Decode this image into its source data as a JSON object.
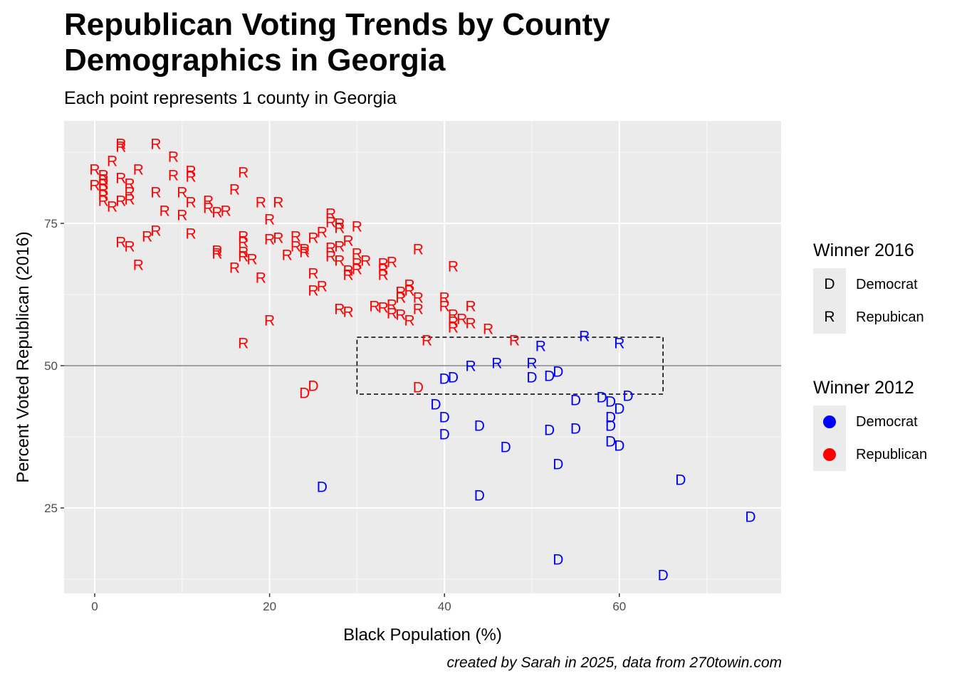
{
  "title_lines": [
    "Republican Voting Trends by County",
    "Demographics in Georgia"
  ],
  "subtitle": "Each point represents 1 county in Georgia",
  "caption": "created by Sarah in 2025, data from 270towin.com",
  "colors": {
    "democrat": "#0000ff",
    "republican": "#ff0000",
    "panel": "#ebebeb",
    "hline": "#808080"
  },
  "legend_2016": {
    "title": "Winner 2016",
    "items": [
      {
        "key": "D",
        "label": "Democrat"
      },
      {
        "key": "R",
        "label": "Repubican"
      }
    ]
  },
  "legend_2012": {
    "title": "Winner 2012",
    "items": [
      {
        "color": "#0000ff",
        "label": "Democrat"
      },
      {
        "color": "#ff0000",
        "label": "Republican"
      }
    ]
  },
  "chart_data": {
    "type": "scatter",
    "title": "Republican Voting Trends by County Demographics in Georgia",
    "subtitle": "Each point represents 1 county in Georgia",
    "xlabel": "Black Population (%)",
    "ylabel": "Percent Voted Republican (2016)",
    "xlim": [
      -3.5,
      78.5
    ],
    "ylim": [
      10,
      93
    ],
    "x_ticks": [
      0,
      20,
      40,
      60
    ],
    "y_ticks": [
      25,
      50,
      75
    ],
    "reference_line_y": 50,
    "highlight_box": {
      "x": [
        30,
        65
      ],
      "y": [
        45,
        55
      ]
    },
    "grid": true,
    "legend_position": "right",
    "points": [
      {
        "x": 0,
        "y": 84.4,
        "label": "R",
        "winner_2012": "R"
      },
      {
        "x": 0,
        "y": 81.6,
        "label": "R",
        "winner_2012": "R"
      },
      {
        "x": 1,
        "y": 83.4,
        "label": "R",
        "winner_2012": "R"
      },
      {
        "x": 1,
        "y": 82.6,
        "label": "R",
        "winner_2012": "R"
      },
      {
        "x": 1,
        "y": 81.9,
        "label": "R",
        "winner_2012": "R"
      },
      {
        "x": 1,
        "y": 80.9,
        "label": "R",
        "winner_2012": "R"
      },
      {
        "x": 1,
        "y": 79.9,
        "label": "R",
        "winner_2012": "R"
      },
      {
        "x": 1,
        "y": 78.9,
        "label": "R",
        "winner_2012": "R"
      },
      {
        "x": 2,
        "y": 85.9,
        "label": "R",
        "winner_2012": "R"
      },
      {
        "x": 2,
        "y": 77.9,
        "label": "R",
        "winner_2012": "R"
      },
      {
        "x": 3,
        "y": 88.9,
        "label": "R",
        "winner_2012": "R"
      },
      {
        "x": 3,
        "y": 88.4,
        "label": "R",
        "winner_2012": "R"
      },
      {
        "x": 3,
        "y": 82.9,
        "label": "R",
        "winner_2012": "R"
      },
      {
        "x": 3,
        "y": 78.9,
        "label": "R",
        "winner_2012": "R"
      },
      {
        "x": 3,
        "y": 71.6,
        "label": "R",
        "winner_2012": "R"
      },
      {
        "x": 4,
        "y": 81.9,
        "label": "R",
        "winner_2012": "R"
      },
      {
        "x": 4,
        "y": 80.4,
        "label": "R",
        "winner_2012": "R"
      },
      {
        "x": 4,
        "y": 79.1,
        "label": "R",
        "winner_2012": "R"
      },
      {
        "x": 4,
        "y": 70.9,
        "label": "R",
        "winner_2012": "R"
      },
      {
        "x": 5,
        "y": 84.4,
        "label": "R",
        "winner_2012": "R"
      },
      {
        "x": 5,
        "y": 67.6,
        "label": "R",
        "winner_2012": "R"
      },
      {
        "x": 6,
        "y": 72.6,
        "label": "R",
        "winner_2012": "R"
      },
      {
        "x": 7,
        "y": 88.9,
        "label": "R",
        "winner_2012": "R"
      },
      {
        "x": 7,
        "y": 80.4,
        "label": "R",
        "winner_2012": "R"
      },
      {
        "x": 7,
        "y": 73.6,
        "label": "R",
        "winner_2012": "R"
      },
      {
        "x": 8,
        "y": 77.1,
        "label": "R",
        "winner_2012": "R"
      },
      {
        "x": 9,
        "y": 86.6,
        "label": "R",
        "winner_2012": "R"
      },
      {
        "x": 9,
        "y": 83.4,
        "label": "R",
        "winner_2012": "R"
      },
      {
        "x": 10,
        "y": 80.4,
        "label": "R",
        "winner_2012": "R"
      },
      {
        "x": 10,
        "y": 76.4,
        "label": "R",
        "winner_2012": "R"
      },
      {
        "x": 11,
        "y": 84.1,
        "label": "R",
        "winner_2012": "R"
      },
      {
        "x": 11,
        "y": 83.1,
        "label": "R",
        "winner_2012": "R"
      },
      {
        "x": 11,
        "y": 78.6,
        "label": "R",
        "winner_2012": "R"
      },
      {
        "x": 11,
        "y": 73.1,
        "label": "R",
        "winner_2012": "R"
      },
      {
        "x": 13,
        "y": 78.9,
        "label": "R",
        "winner_2012": "R"
      },
      {
        "x": 13,
        "y": 77.6,
        "label": "R",
        "winner_2012": "R"
      },
      {
        "x": 14,
        "y": 76.9,
        "label": "R",
        "winner_2012": "R"
      },
      {
        "x": 14,
        "y": 70.1,
        "label": "R",
        "winner_2012": "R"
      },
      {
        "x": 14,
        "y": 69.6,
        "label": "R",
        "winner_2012": "R"
      },
      {
        "x": 15,
        "y": 77.1,
        "label": "R",
        "winner_2012": "R"
      },
      {
        "x": 16,
        "y": 80.9,
        "label": "R",
        "winner_2012": "R"
      },
      {
        "x": 16,
        "y": 67.1,
        "label": "R",
        "winner_2012": "R"
      },
      {
        "x": 17,
        "y": 83.9,
        "label": "R",
        "winner_2012": "R"
      },
      {
        "x": 17,
        "y": 72.6,
        "label": "R",
        "winner_2012": "R"
      },
      {
        "x": 17,
        "y": 71.6,
        "label": "R",
        "winner_2012": "R"
      },
      {
        "x": 17,
        "y": 69.9,
        "label": "R",
        "winner_2012": "R"
      },
      {
        "x": 17,
        "y": 69.1,
        "label": "R",
        "winner_2012": "R"
      },
      {
        "x": 17,
        "y": 53.9,
        "label": "R",
        "winner_2012": "R"
      },
      {
        "x": 18,
        "y": 68.6,
        "label": "R",
        "winner_2012": "R"
      },
      {
        "x": 19,
        "y": 78.6,
        "label": "R",
        "winner_2012": "R"
      },
      {
        "x": 19,
        "y": 65.4,
        "label": "R",
        "winner_2012": "R"
      },
      {
        "x": 20,
        "y": 75.6,
        "label": "R",
        "winner_2012": "R"
      },
      {
        "x": 20,
        "y": 72.1,
        "label": "R",
        "winner_2012": "R"
      },
      {
        "x": 20,
        "y": 57.9,
        "label": "R",
        "winner_2012": "R"
      },
      {
        "x": 21,
        "y": 78.6,
        "label": "R",
        "winner_2012": "R"
      },
      {
        "x": 21,
        "y": 72.4,
        "label": "R",
        "winner_2012": "R"
      },
      {
        "x": 22,
        "y": 69.4,
        "label": "R",
        "winner_2012": "R"
      },
      {
        "x": 23,
        "y": 72.6,
        "label": "R",
        "winner_2012": "R"
      },
      {
        "x": 23,
        "y": 70.9,
        "label": "R",
        "winner_2012": "R"
      },
      {
        "x": 24,
        "y": 70.4,
        "label": "R",
        "winner_2012": "R"
      },
      {
        "x": 24,
        "y": 69.9,
        "label": "R",
        "winner_2012": "R"
      },
      {
        "x": 25,
        "y": 72.4,
        "label": "R",
        "winner_2012": "R"
      },
      {
        "x": 25,
        "y": 66.1,
        "label": "R",
        "winner_2012": "R"
      },
      {
        "x": 25,
        "y": 63.1,
        "label": "R",
        "winner_2012": "R"
      },
      {
        "x": 26,
        "y": 73.4,
        "label": "R",
        "winner_2012": "R"
      },
      {
        "x": 26,
        "y": 63.9,
        "label": "R",
        "winner_2012": "R"
      },
      {
        "x": 27,
        "y": 76.6,
        "label": "R",
        "winner_2012": "R"
      },
      {
        "x": 27,
        "y": 75.1,
        "label": "R",
        "winner_2012": "R"
      },
      {
        "x": 27,
        "y": 70.6,
        "label": "R",
        "winner_2012": "R"
      },
      {
        "x": 27,
        "y": 69.1,
        "label": "R",
        "winner_2012": "R"
      },
      {
        "x": 28,
        "y": 74.9,
        "label": "R",
        "winner_2012": "R"
      },
      {
        "x": 28,
        "y": 74.1,
        "label": "R",
        "winner_2012": "R"
      },
      {
        "x": 28,
        "y": 70.9,
        "label": "R",
        "winner_2012": "R"
      },
      {
        "x": 28,
        "y": 68.4,
        "label": "R",
        "winner_2012": "R"
      },
      {
        "x": 28,
        "y": 59.9,
        "label": "R",
        "winner_2012": "R"
      },
      {
        "x": 29,
        "y": 71.9,
        "label": "R",
        "winner_2012": "R"
      },
      {
        "x": 29,
        "y": 66.6,
        "label": "R",
        "winner_2012": "R"
      },
      {
        "x": 29,
        "y": 65.9,
        "label": "R",
        "winner_2012": "R"
      },
      {
        "x": 29,
        "y": 59.4,
        "label": "R",
        "winner_2012": "R"
      },
      {
        "x": 30,
        "y": 74.4,
        "label": "R",
        "winner_2012": "R"
      },
      {
        "x": 30,
        "y": 69.6,
        "label": "R",
        "winner_2012": "R"
      },
      {
        "x": 30,
        "y": 67.9,
        "label": "R",
        "winner_2012": "R"
      },
      {
        "x": 30,
        "y": 66.9,
        "label": "R",
        "winner_2012": "R"
      },
      {
        "x": 31,
        "y": 68.4,
        "label": "R",
        "winner_2012": "R"
      },
      {
        "x": 32,
        "y": 60.4,
        "label": "R",
        "winner_2012": "R"
      },
      {
        "x": 33,
        "y": 67.9,
        "label": "R",
        "winner_2012": "R"
      },
      {
        "x": 33,
        "y": 66.9,
        "label": "R",
        "winner_2012": "R"
      },
      {
        "x": 33,
        "y": 65.9,
        "label": "R",
        "winner_2012": "R"
      },
      {
        "x": 33,
        "y": 60.1,
        "label": "R",
        "winner_2012": "R"
      },
      {
        "x": 34,
        "y": 68.1,
        "label": "R",
        "winner_2012": "R"
      },
      {
        "x": 34,
        "y": 60.6,
        "label": "R",
        "winner_2012": "R"
      },
      {
        "x": 34,
        "y": 59.1,
        "label": "R",
        "winner_2012": "R"
      },
      {
        "x": 35,
        "y": 62.9,
        "label": "R",
        "winner_2012": "R"
      },
      {
        "x": 35,
        "y": 61.9,
        "label": "R",
        "winner_2012": "R"
      },
      {
        "x": 35,
        "y": 58.9,
        "label": "R",
        "winner_2012": "R"
      },
      {
        "x": 36,
        "y": 64.1,
        "label": "R",
        "winner_2012": "R"
      },
      {
        "x": 36,
        "y": 63.1,
        "label": "R",
        "winner_2012": "R"
      },
      {
        "x": 36,
        "y": 57.9,
        "label": "R",
        "winner_2012": "R"
      },
      {
        "x": 37,
        "y": 70.4,
        "label": "R",
        "winner_2012": "R"
      },
      {
        "x": 37,
        "y": 61.9,
        "label": "R",
        "winner_2012": "R"
      },
      {
        "x": 37,
        "y": 59.9,
        "label": "R",
        "winner_2012": "R"
      },
      {
        "x": 38,
        "y": 54.4,
        "label": "R",
        "winner_2012": "R"
      },
      {
        "x": 40,
        "y": 61.9,
        "label": "R",
        "winner_2012": "R"
      },
      {
        "x": 40,
        "y": 60.4,
        "label": "R",
        "winner_2012": "R"
      },
      {
        "x": 41,
        "y": 67.4,
        "label": "R",
        "winner_2012": "R"
      },
      {
        "x": 41,
        "y": 58.9,
        "label": "R",
        "winner_2012": "R"
      },
      {
        "x": 41,
        "y": 57.6,
        "label": "R",
        "winner_2012": "R"
      },
      {
        "x": 41,
        "y": 56.6,
        "label": "R",
        "winner_2012": "R"
      },
      {
        "x": 42,
        "y": 58.1,
        "label": "R",
        "winner_2012": "R"
      },
      {
        "x": 43,
        "y": 60.4,
        "label": "R",
        "winner_2012": "R"
      },
      {
        "x": 43,
        "y": 57.4,
        "label": "R",
        "winner_2012": "R"
      },
      {
        "x": 45,
        "y": 56.4,
        "label": "R",
        "winner_2012": "R"
      },
      {
        "x": 48,
        "y": 54.4,
        "label": "R",
        "winner_2012": "R"
      },
      {
        "x": 24,
        "y": 45.1,
        "label": "D",
        "winner_2012": "R"
      },
      {
        "x": 25,
        "y": 46.4,
        "label": "D",
        "winner_2012": "R"
      },
      {
        "x": 37,
        "y": 46.1,
        "label": "D",
        "winner_2012": "R"
      },
      {
        "x": 43,
        "y": 49.9,
        "label": "R",
        "winner_2012": "D"
      },
      {
        "x": 46,
        "y": 50.4,
        "label": "R",
        "winner_2012": "D"
      },
      {
        "x": 50,
        "y": 50.4,
        "label": "R",
        "winner_2012": "D"
      },
      {
        "x": 51,
        "y": 53.4,
        "label": "R",
        "winner_2012": "D"
      },
      {
        "x": 56,
        "y": 55.1,
        "label": "R",
        "winner_2012": "D"
      },
      {
        "x": 60,
        "y": 53.9,
        "label": "R",
        "winner_2012": "D"
      },
      {
        "x": 40,
        "y": 47.6,
        "label": "D",
        "winner_2012": "D"
      },
      {
        "x": 41,
        "y": 47.9,
        "label": "D",
        "winner_2012": "D"
      },
      {
        "x": 50,
        "y": 47.9,
        "label": "D",
        "winner_2012": "D"
      },
      {
        "x": 52,
        "y": 48.1,
        "label": "D",
        "winner_2012": "D"
      },
      {
        "x": 53,
        "y": 48.9,
        "label": "D",
        "winner_2012": "D"
      },
      {
        "x": 39,
        "y": 43.1,
        "label": "D",
        "winner_2012": "D"
      },
      {
        "x": 40,
        "y": 40.9,
        "label": "D",
        "winner_2012": "D"
      },
      {
        "x": 40,
        "y": 37.9,
        "label": "D",
        "winner_2012": "D"
      },
      {
        "x": 44,
        "y": 39.4,
        "label": "D",
        "winner_2012": "D"
      },
      {
        "x": 47,
        "y": 35.6,
        "label": "D",
        "winner_2012": "D"
      },
      {
        "x": 52,
        "y": 38.6,
        "label": "D",
        "winner_2012": "D"
      },
      {
        "x": 53,
        "y": 32.6,
        "label": "D",
        "winner_2012": "D"
      },
      {
        "x": 55,
        "y": 43.9,
        "label": "D",
        "winner_2012": "D"
      },
      {
        "x": 55,
        "y": 38.9,
        "label": "D",
        "winner_2012": "D"
      },
      {
        "x": 58,
        "y": 44.4,
        "label": "D",
        "winner_2012": "D"
      },
      {
        "x": 59,
        "y": 43.6,
        "label": "D",
        "winner_2012": "D"
      },
      {
        "x": 59,
        "y": 40.9,
        "label": "D",
        "winner_2012": "D"
      },
      {
        "x": 59,
        "y": 39.4,
        "label": "D",
        "winner_2012": "D"
      },
      {
        "x": 59,
        "y": 36.6,
        "label": "D",
        "winner_2012": "D"
      },
      {
        "x": 60,
        "y": 42.4,
        "label": "D",
        "winner_2012": "D"
      },
      {
        "x": 60,
        "y": 35.9,
        "label": "D",
        "winner_2012": "D"
      },
      {
        "x": 61,
        "y": 44.6,
        "label": "D",
        "winner_2012": "D"
      },
      {
        "x": 26,
        "y": 28.6,
        "label": "D",
        "winner_2012": "D"
      },
      {
        "x": 44,
        "y": 27.1,
        "label": "D",
        "winner_2012": "D"
      },
      {
        "x": 53,
        "y": 15.9,
        "label": "D",
        "winner_2012": "D"
      },
      {
        "x": 65,
        "y": 13.1,
        "label": "D",
        "winner_2012": "D"
      },
      {
        "x": 67,
        "y": 29.9,
        "label": "D",
        "winner_2012": "D"
      },
      {
        "x": 75,
        "y": 23.4,
        "label": "D",
        "winner_2012": "D"
      }
    ]
  }
}
